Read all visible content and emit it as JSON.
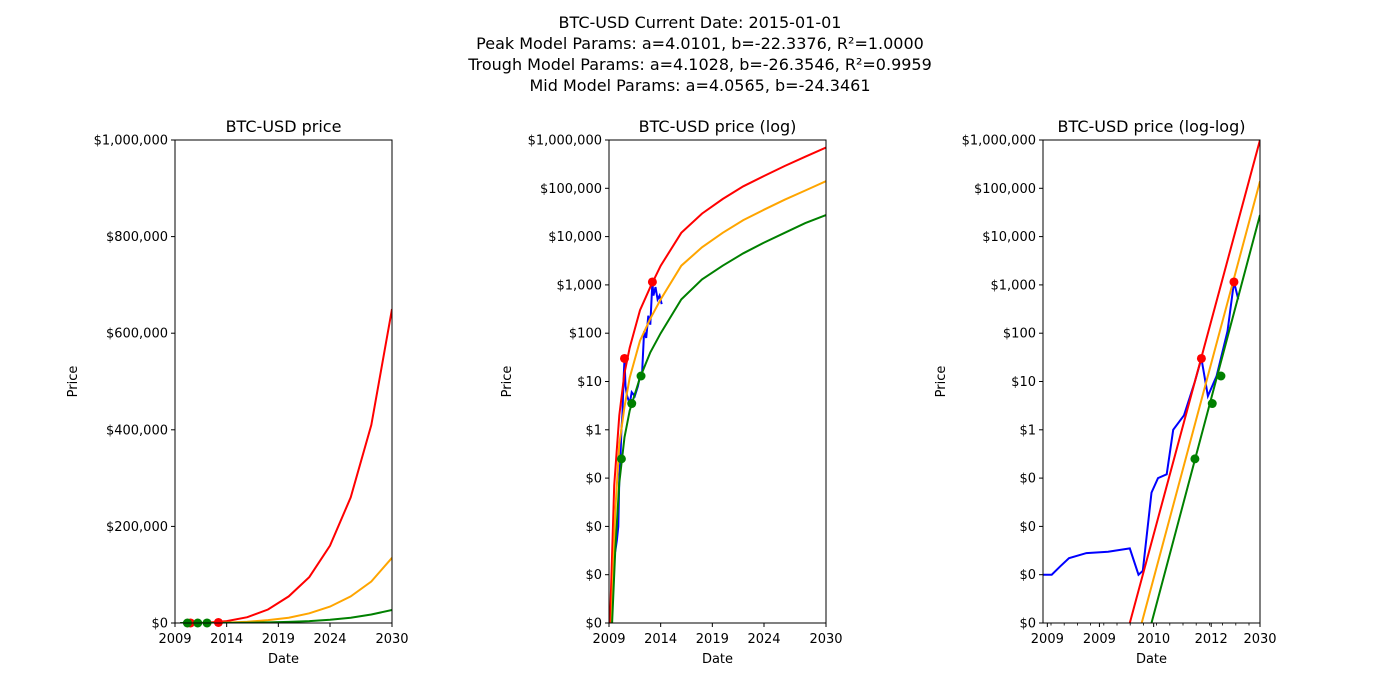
{
  "figure": {
    "title_lines": [
      "BTC-USD Current Date: 2015-01-01",
      "Peak Model Params: a=4.0101, b=-22.3376, R²=1.0000",
      "Trough Model Params: a=4.1028, b=-26.3546, R²=0.9959",
      "Mid Model Params: a=4.0565, b=-24.3461"
    ]
  },
  "colors": {
    "price": "#0000ff",
    "peak": "#ff0000",
    "mid": "#ffa500",
    "trough": "#008000"
  },
  "chart_data": [
    {
      "type": "line",
      "title": "BTC-USD price",
      "xlabel": "Date",
      "ylabel": "Price",
      "yscale": "linear",
      "xlim": [
        2009,
        2030
      ],
      "ylim": [
        0,
        1000000
      ],
      "xticks": [
        2009,
        2014,
        2019,
        2024,
        2030
      ],
      "xtick_labels": [
        "2009",
        "2014",
        "2019",
        "2024",
        "2030"
      ],
      "yticks": [
        0,
        200000,
        400000,
        600000,
        800000,
        1000000
      ],
      "ytick_labels": [
        "$0",
        "$200,000",
        "$400,000",
        "$600,000",
        "$800,000",
        "$1,000,000"
      ],
      "series": [
        {
          "key": "peak",
          "x": [
            2009.5,
            2012,
            2014,
            2016,
            2018,
            2020,
            2022,
            2024,
            2026,
            2028,
            2030
          ],
          "y": [
            0,
            600,
            4000,
            12000,
            28000,
            55000,
            95000,
            160000,
            260000,
            410000,
            650000
          ]
        },
        {
          "key": "mid",
          "x": [
            2009.5,
            2012,
            2014,
            2016,
            2018,
            2020,
            2022,
            2024,
            2026,
            2028,
            2030
          ],
          "y": [
            0,
            100,
            800,
            2500,
            6000,
            11000,
            20000,
            34000,
            55000,
            86000,
            135000
          ]
        },
        {
          "key": "trough",
          "x": [
            2009.5,
            2012,
            2014,
            2016,
            2018,
            2020,
            2022,
            2024,
            2026,
            2028,
            2030
          ],
          "y": [
            0,
            20,
            150,
            500,
            1200,
            2300,
            4000,
            6800,
            11000,
            17500,
            27000
          ]
        }
      ],
      "peaks": {
        "x": [
          2010.5,
          2013.2
        ],
        "y": [
          30,
          1150
        ]
      },
      "troughs": {
        "x": [
          2010.2,
          2011.2,
          2012.1
        ],
        "y": [
          0.25,
          3.5,
          13
        ]
      }
    },
    {
      "type": "line",
      "title": "BTC-USD price (log)",
      "xlabel": "Date",
      "ylabel": "Price",
      "yscale": "log",
      "xlim": [
        2009,
        2030
      ],
      "ylim": [
        0.0001,
        1000000
      ],
      "xticks": [
        2009,
        2014,
        2019,
        2024,
        2030
      ],
      "xtick_labels": [
        "2009",
        "2014",
        "2019",
        "2024",
        "2030"
      ],
      "yticks": [
        0.0001,
        0.001,
        0.01,
        0.1,
        1,
        10,
        100,
        1000,
        10000,
        100000,
        1000000
      ],
      "ytick_labels": [
        "$0",
        "$0",
        "$0",
        "$0",
        "$1",
        "$10",
        "$100",
        "$1,000",
        "$10,000",
        "$100,000",
        "$1,000,000"
      ],
      "series": [
        {
          "key": "price",
          "x": [
            2009.6,
            2009.75,
            2009.9,
            2010.0,
            2010.1,
            2010.2,
            2010.3,
            2010.4,
            2010.5,
            2010.6,
            2010.75,
            2011.0,
            2011.2,
            2011.5,
            2011.8,
            2012.0,
            2012.2,
            2012.4,
            2012.6,
            2012.8,
            2013.0,
            2013.2,
            2013.3,
            2013.5,
            2013.7,
            2013.9,
            2014.1
          ],
          "y": [
            0.003,
            0.005,
            0.01,
            0.1,
            0.25,
            1,
            2,
            10,
            30,
            8,
            5,
            3.5,
            6,
            5,
            8,
            13,
            15,
            110,
            80,
            230,
            150,
            1150,
            600,
            900,
            500,
            600,
            400
          ]
        },
        {
          "key": "peak",
          "x": [
            2009.1,
            2009.5,
            2010,
            2010.5,
            2011,
            2012,
            2013,
            2014,
            2016,
            2018,
            2020,
            2022,
            2024,
            2026,
            2028,
            2030
          ],
          "y": [
            0.0001,
            0.07,
            2,
            15,
            50,
            300,
            900,
            2500,
            12000,
            30000,
            60000,
            110000,
            180000,
            290000,
            450000,
            700000
          ]
        },
        {
          "key": "mid",
          "x": [
            2009.25,
            2009.6,
            2010,
            2010.5,
            2011,
            2012,
            2013,
            2014,
            2016,
            2018,
            2020,
            2022,
            2024,
            2026,
            2028,
            2030
          ],
          "y": [
            0.0001,
            0.02,
            0.5,
            3,
            12,
            70,
            200,
            500,
            2500,
            6000,
            12000,
            22000,
            36000,
            58000,
            90000,
            140000
          ]
        },
        {
          "key": "trough",
          "x": [
            2009.3,
            2009.6,
            2010,
            2010.5,
            2011,
            2012,
            2013,
            2014,
            2016,
            2018,
            2020,
            2022,
            2024,
            2026,
            2028,
            2030
          ],
          "y": [
            0.0001,
            0.003,
            0.08,
            0.7,
            2.5,
            12,
            40,
            100,
            500,
            1300,
            2500,
            4500,
            7500,
            12000,
            19000,
            28000
          ]
        }
      ],
      "peaks": {
        "x": [
          2010.5,
          2013.2
        ],
        "y": [
          30,
          1150
        ]
      },
      "troughs": {
        "x": [
          2010.2,
          2011.2,
          2012.1
        ],
        "y": [
          0.25,
          3.5,
          13
        ]
      }
    },
    {
      "type": "line",
      "title": "BTC-USD price (log-log)",
      "xlabel": "Date",
      "ylabel": "Price",
      "yscale": "log",
      "xscale": "log",
      "xlim": [
        0,
        1
      ],
      "ylim": [
        0.0001,
        1000000
      ],
      "xticks": [
        0.02,
        0.26,
        0.51,
        0.775,
        1
      ],
      "xtick_labels": [
        "2009",
        "2009",
        "2010",
        "2012",
        "2030"
      ],
      "yticks": [
        0.0001,
        0.001,
        0.01,
        0.1,
        1,
        10,
        100,
        1000,
        10000,
        100000,
        1000000
      ],
      "ytick_labels": [
        "$0",
        "$0",
        "$0",
        "$0",
        "$1",
        "$10",
        "$100",
        "$1,000",
        "$10,000",
        "$100,000",
        "$1,000,000"
      ],
      "series": [
        {
          "key": "price",
          "x": [
            0,
            0.04,
            0.08,
            0.12,
            0.2,
            0.3,
            0.4,
            0.44,
            0.46,
            0.5,
            0.53,
            0.57,
            0.6,
            0.65,
            0.7,
            0.73,
            0.76,
            0.8,
            0.85,
            0.88,
            0.9
          ],
          "y": [
            0.001,
            0.001,
            0.0015,
            0.0022,
            0.0028,
            0.003,
            0.0035,
            0.001,
            0.0012,
            0.05,
            0.1,
            0.12,
            1,
            2,
            10,
            30,
            5,
            13,
            110,
            1150,
            500
          ]
        },
        {
          "key": "peak",
          "x": [
            0.4,
            1
          ],
          "y": [
            0.0001,
            1000000
          ]
        },
        {
          "key": "mid",
          "x": [
            0.455,
            1
          ],
          "y": [
            0.0001,
            140000
          ]
        },
        {
          "key": "trough",
          "x": [
            0.5,
            1
          ],
          "y": [
            0.0001,
            28000
          ]
        }
      ],
      "peaks": {
        "x": [
          0.73,
          0.88
        ],
        "y": [
          30,
          1150
        ]
      },
      "troughs": {
        "x": [
          0.7,
          0.78,
          0.82
        ],
        "y": [
          0.25,
          3.5,
          13
        ]
      }
    }
  ]
}
